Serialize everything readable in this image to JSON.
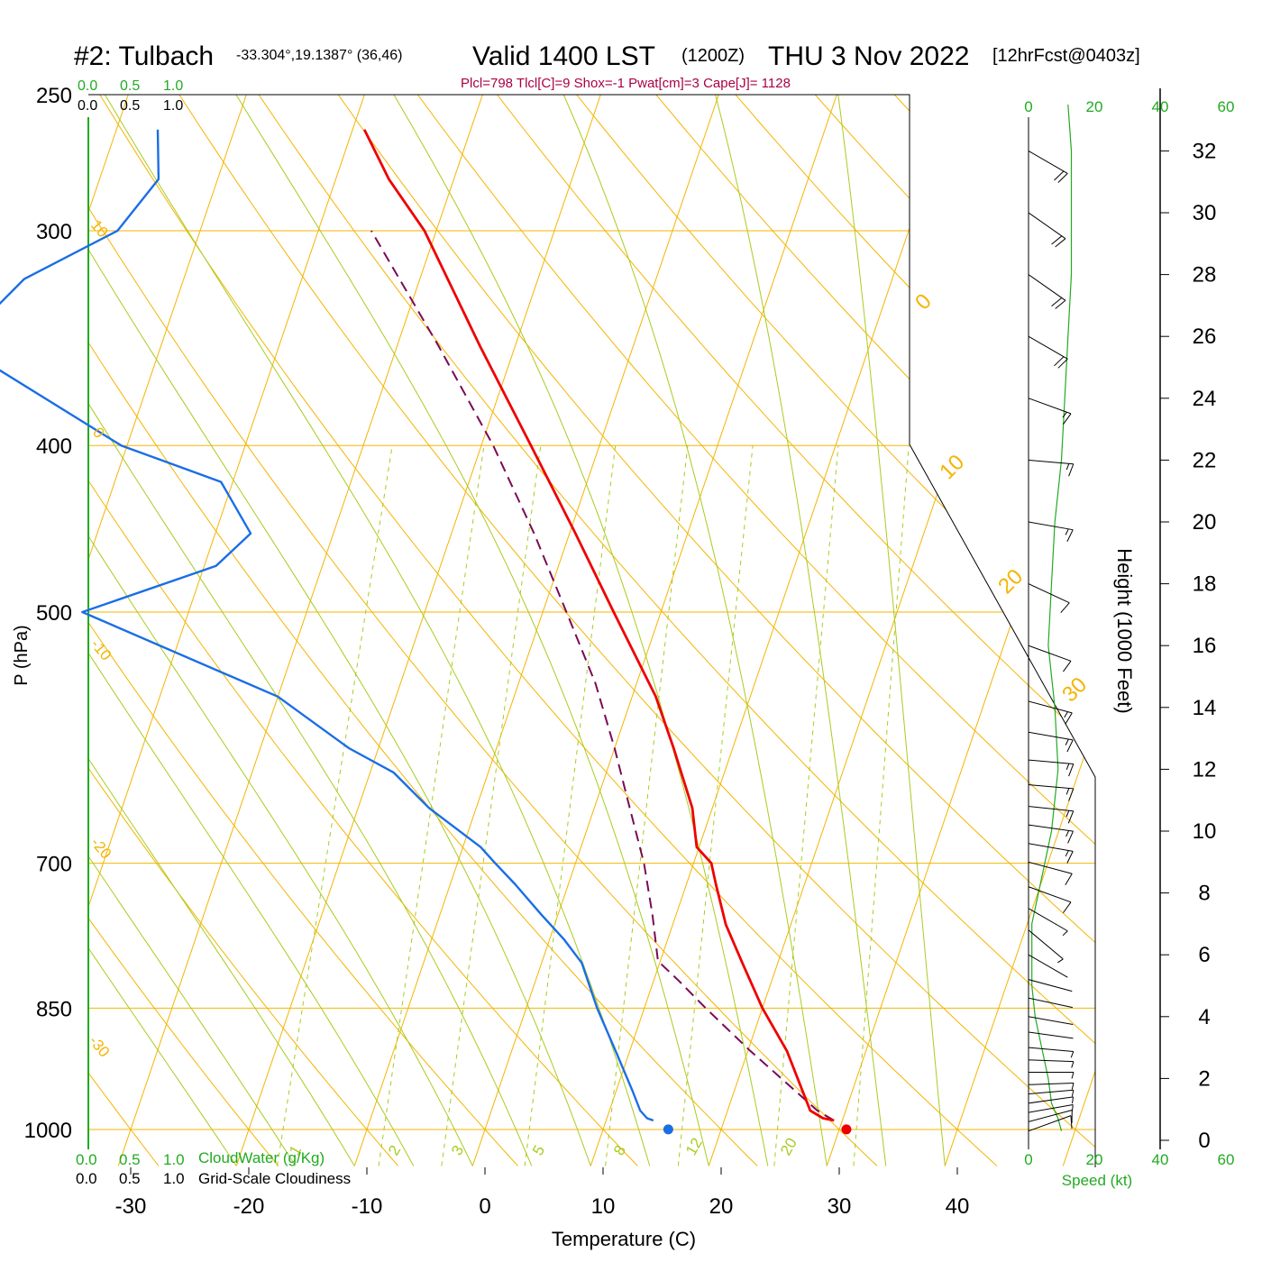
{
  "header": {
    "station": "#2: Tulbach",
    "coords": "-33.304°,19.1387° (36,46)",
    "valid": "Valid 1400 LST",
    "zulu": "(1200Z)",
    "date": "THU 3 Nov 2022",
    "forecast": "[12hrFcst@0403z]"
  },
  "indices": "Plcl=798 Tlcl[C]=9 Shox=-1 Pwat[cm]=3 Cape[J]= 1128",
  "colors": {
    "isobar": "#f5b400",
    "dry_adiabat": "#f5b400",
    "moist_adiabat": "#a8cc20",
    "mixing_ratio": "#a8cc20",
    "temperature": "#ee0000",
    "dewpoint": "#1a6ee6",
    "parcel": "#7a0a55",
    "cloud": "#22aa22",
    "indices": "#aa0044",
    "wind": "#000000",
    "speed_curve": "#22aa22"
  },
  "chart_data": {
    "type": "skew-t",
    "xlabel": "Temperature (C)",
    "ylabel": "P (hPa)",
    "right_label": "Height (1000 Feet)",
    "x_ticks": [
      "-30",
      "-20",
      "-10",
      "0",
      "10",
      "20",
      "30",
      "40"
    ],
    "x_tick_values": [
      -30,
      -20,
      -10,
      0,
      10,
      20,
      30,
      40
    ],
    "p_ticks": [
      "250",
      "300",
      "400",
      "500",
      "700",
      "850",
      "1000"
    ],
    "p_tick_values": [
      250,
      300,
      400,
      500,
      700,
      850,
      1000
    ],
    "height_ticks": [
      "0",
      "2",
      "4",
      "6",
      "8",
      "10",
      "12",
      "14",
      "16",
      "18",
      "20",
      "22",
      "24",
      "26",
      "28",
      "30",
      "32"
    ],
    "height_tick_values": [
      0,
      2,
      4,
      6,
      8,
      10,
      12,
      14,
      16,
      18,
      20,
      22,
      24,
      26,
      28,
      30,
      32
    ],
    "dry_adiabat_labels": [
      "10",
      "0",
      "-10",
      "-20",
      "-30",
      "0",
      "10",
      "20",
      "30"
    ],
    "mixing_ratio_labels": [
      "1",
      "2",
      "3",
      "5",
      "8",
      "12",
      "20"
    ],
    "cloud_top_ticks": [
      "0.0",
      "0.5",
      "1.0"
    ],
    "cloud_top_ticks_black": [
      "0.0",
      "0.5",
      "1.0"
    ],
    "cloud_bottom_green": [
      "0.0",
      "0.5",
      "1.0"
    ],
    "cloud_bottom_black": [
      "0.0",
      "0.5",
      "1.0"
    ],
    "cloudwater_label": "CloudWater (g/Kg)",
    "cloudiness_label": "Grid-Scale Cloudiness",
    "speed_label": "Speed (kt)",
    "speed_ticks_top": [
      "0",
      "20",
      "40",
      "60"
    ],
    "speed_ticks_bottom": [
      "0",
      "20",
      "40",
      "60"
    ],
    "temperature": [
      {
        "p": 988,
        "t": 29.3
      },
      {
        "p": 985,
        "t": 28.3
      },
      {
        "p": 975,
        "t": 27.0
      },
      {
        "p": 950,
        "t": 25.8
      },
      {
        "p": 900,
        "t": 23.3
      },
      {
        "p": 850,
        "t": 20.0
      },
      {
        "p": 800,
        "t": 17.0
      },
      {
        "p": 760,
        "t": 14.5
      },
      {
        "p": 720,
        "t": 12.5
      },
      {
        "p": 700,
        "t": 11.5
      },
      {
        "p": 685,
        "t": 9.8
      },
      {
        "p": 650,
        "t": 8.3
      },
      {
        "p": 600,
        "t": 5.0
      },
      {
        "p": 560,
        "t": 2.0
      },
      {
        "p": 500,
        "t": -4.0
      },
      {
        "p": 450,
        "t": -9.5
      },
      {
        "p": 400,
        "t": -15.8
      },
      {
        "p": 350,
        "t": -23.0
      },
      {
        "p": 300,
        "t": -31.0
      },
      {
        "p": 280,
        "t": -35.5
      },
      {
        "p": 262,
        "t": -39.0
      }
    ],
    "dewpoint": [
      {
        "p": 988,
        "t": 14.0
      },
      {
        "p": 985,
        "t": 13.4
      },
      {
        "p": 975,
        "t": 12.6
      },
      {
        "p": 950,
        "t": 11.4
      },
      {
        "p": 900,
        "t": 8.8
      },
      {
        "p": 850,
        "t": 6.0
      },
      {
        "p": 800,
        "t": 3.4
      },
      {
        "p": 775,
        "t": 1.2
      },
      {
        "p": 750,
        "t": -1.4
      },
      {
        "p": 720,
        "t": -4.5
      },
      {
        "p": 700,
        "t": -6.8
      },
      {
        "p": 685,
        "t": -8.5
      },
      {
        "p": 650,
        "t": -14.0
      },
      {
        "p": 620,
        "t": -18.0
      },
      {
        "p": 600,
        "t": -22.5
      },
      {
        "p": 560,
        "t": -30.0
      },
      {
        "p": 500,
        "t": -49.0
      },
      {
        "p": 470,
        "t": -39.0
      },
      {
        "p": 450,
        "t": -37.0
      },
      {
        "p": 420,
        "t": -41.0
      },
      {
        "p": 400,
        "t": -50.5
      },
      {
        "p": 350,
        "t": -67.0
      },
      {
        "p": 340,
        "t": -66.0
      },
      {
        "p": 320,
        "t": -63.5
      },
      {
        "p": 300,
        "t": -57.0
      },
      {
        "p": 280,
        "t": -55.0
      },
      {
        "p": 262,
        "t": -56.5
      }
    ],
    "parcel": [
      {
        "p": 988,
        "t": 29.3
      },
      {
        "p": 975,
        "t": 27.6
      },
      {
        "p": 950,
        "t": 25.2
      },
      {
        "p": 900,
        "t": 20.2
      },
      {
        "p": 850,
        "t": 15.2
      },
      {
        "p": 820,
        "t": 12.2
      },
      {
        "p": 798,
        "t": 9.8
      },
      {
        "p": 750,
        "t": 8.0
      },
      {
        "p": 700,
        "t": 5.8
      },
      {
        "p": 650,
        "t": 3.0
      },
      {
        "p": 600,
        "t": 0.0
      },
      {
        "p": 550,
        "t": -3.5
      },
      {
        "p": 500,
        "t": -8.0
      },
      {
        "p": 450,
        "t": -13.0
      },
      {
        "p": 400,
        "t": -19.0
      },
      {
        "p": 350,
        "t": -26.5
      },
      {
        "p": 300,
        "t": -35.5
      }
    ],
    "surface_temperature": 30.5,
    "surface_dewpoint": 14.5,
    "wind_speed_profile": [
      {
        "h": 0.3,
        "v": 10
      },
      {
        "h": 0.7,
        "v": 9
      },
      {
        "h": 1.2,
        "v": 7
      },
      {
        "h": 2.0,
        "v": 6
      },
      {
        "h": 3.0,
        "v": 4
      },
      {
        "h": 4.0,
        "v": 2
      },
      {
        "h": 5.0,
        "v": 1
      },
      {
        "h": 6.0,
        "v": 1
      },
      {
        "h": 7.0,
        "v": 1
      },
      {
        "h": 8.0,
        "v": 3
      },
      {
        "h": 9.0,
        "v": 5
      },
      {
        "h": 10.0,
        "v": 7
      },
      {
        "h": 12.0,
        "v": 9
      },
      {
        "h": 14.0,
        "v": 8
      },
      {
        "h": 16.0,
        "v": 6
      },
      {
        "h": 18.0,
        "v": 7
      },
      {
        "h": 20.0,
        "v": 8
      },
      {
        "h": 22.0,
        "v": 10
      },
      {
        "h": 24.0,
        "v": 11
      },
      {
        "h": 26.0,
        "v": 12
      },
      {
        "h": 28.0,
        "v": 13
      },
      {
        "h": 30.0,
        "v": 13
      },
      {
        "h": 32.0,
        "v": 13
      },
      {
        "h": 33.5,
        "v": 12
      }
    ],
    "wind_barbs": [
      {
        "h": 0.3,
        "dir": 250,
        "spd": 10
      },
      {
        "h": 0.6,
        "dir": 255,
        "spd": 10
      },
      {
        "h": 0.9,
        "dir": 260,
        "spd": 9
      },
      {
        "h": 1.2,
        "dir": 262,
        "spd": 8
      },
      {
        "h": 1.5,
        "dir": 265,
        "spd": 7
      },
      {
        "h": 1.8,
        "dir": 268,
        "spd": 6
      },
      {
        "h": 2.2,
        "dir": 270,
        "spd": 6
      },
      {
        "h": 2.6,
        "dir": 272,
        "spd": 5
      },
      {
        "h": 3.0,
        "dir": 275,
        "spd": 5
      },
      {
        "h": 3.5,
        "dir": 278,
        "spd": 4
      },
      {
        "h": 4.0,
        "dir": 280,
        "spd": 3
      },
      {
        "h": 4.6,
        "dir": 282,
        "spd": 3
      },
      {
        "h": 5.2,
        "dir": 285,
        "spd": 2
      },
      {
        "h": 6.0,
        "dir": 300,
        "spd": 3
      },
      {
        "h": 6.8,
        "dir": 310,
        "spd": 5
      },
      {
        "h": 7.5,
        "dir": 300,
        "spd": 8
      },
      {
        "h": 8.2,
        "dir": 290,
        "spd": 12
      },
      {
        "h": 9.0,
        "dir": 285,
        "spd": 14
      },
      {
        "h": 9.6,
        "dir": 280,
        "spd": 15
      },
      {
        "h": 10.2,
        "dir": 278,
        "spd": 16
      },
      {
        "h": 10.8,
        "dir": 276,
        "spd": 17
      },
      {
        "h": 11.5,
        "dir": 275,
        "spd": 17
      },
      {
        "h": 12.3,
        "dir": 275,
        "spd": 18
      },
      {
        "h": 13.2,
        "dir": 280,
        "spd": 17
      },
      {
        "h": 14.2,
        "dir": 285,
        "spd": 15
      },
      {
        "h": 16.0,
        "dir": 290,
        "spd": 14
      },
      {
        "h": 18.0,
        "dir": 295,
        "spd": 14
      },
      {
        "h": 20.0,
        "dir": 280,
        "spd": 16
      },
      {
        "h": 22.0,
        "dir": 275,
        "spd": 17
      },
      {
        "h": 24.0,
        "dir": 290,
        "spd": 19
      },
      {
        "h": 26.0,
        "dir": 300,
        "spd": 21
      },
      {
        "h": 28.0,
        "dir": 305,
        "spd": 23
      },
      {
        "h": 30.0,
        "dir": 305,
        "spd": 23
      },
      {
        "h": 32.0,
        "dir": 300,
        "spd": 24
      }
    ]
  }
}
